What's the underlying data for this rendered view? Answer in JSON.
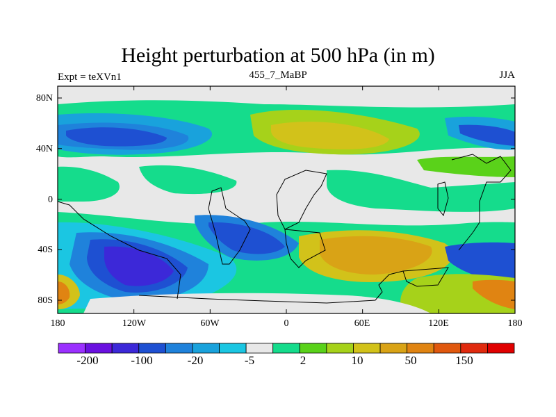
{
  "title": "Height perturbation at 500 hPa (in m)",
  "left_label": "Expt = teXVn1",
  "center_label": "455_7_MaBP",
  "right_label": "JJA",
  "axes": {
    "y_ticks": [
      "80N",
      "40N",
      "0",
      "40S",
      "80S"
    ],
    "x_ticks": [
      "180",
      "120W",
      "60W",
      "0",
      "60E",
      "120E",
      "180"
    ]
  },
  "colorbar": {
    "colors": [
      "#9b30ff",
      "#6a10e0",
      "#3c28d8",
      "#1e50d2",
      "#1f82db",
      "#19a2dc",
      "#1bc6e2",
      "#e8e8e8",
      "#15dc8c",
      "#5ad21a",
      "#a6d21a",
      "#d2c21a",
      "#d9a316",
      "#e08412",
      "#e0580e",
      "#e02a0e",
      "#e00000"
    ],
    "labels": [
      "-200",
      "-100",
      "-20",
      "-5",
      "2",
      "10",
      "50",
      "150"
    ]
  }
}
